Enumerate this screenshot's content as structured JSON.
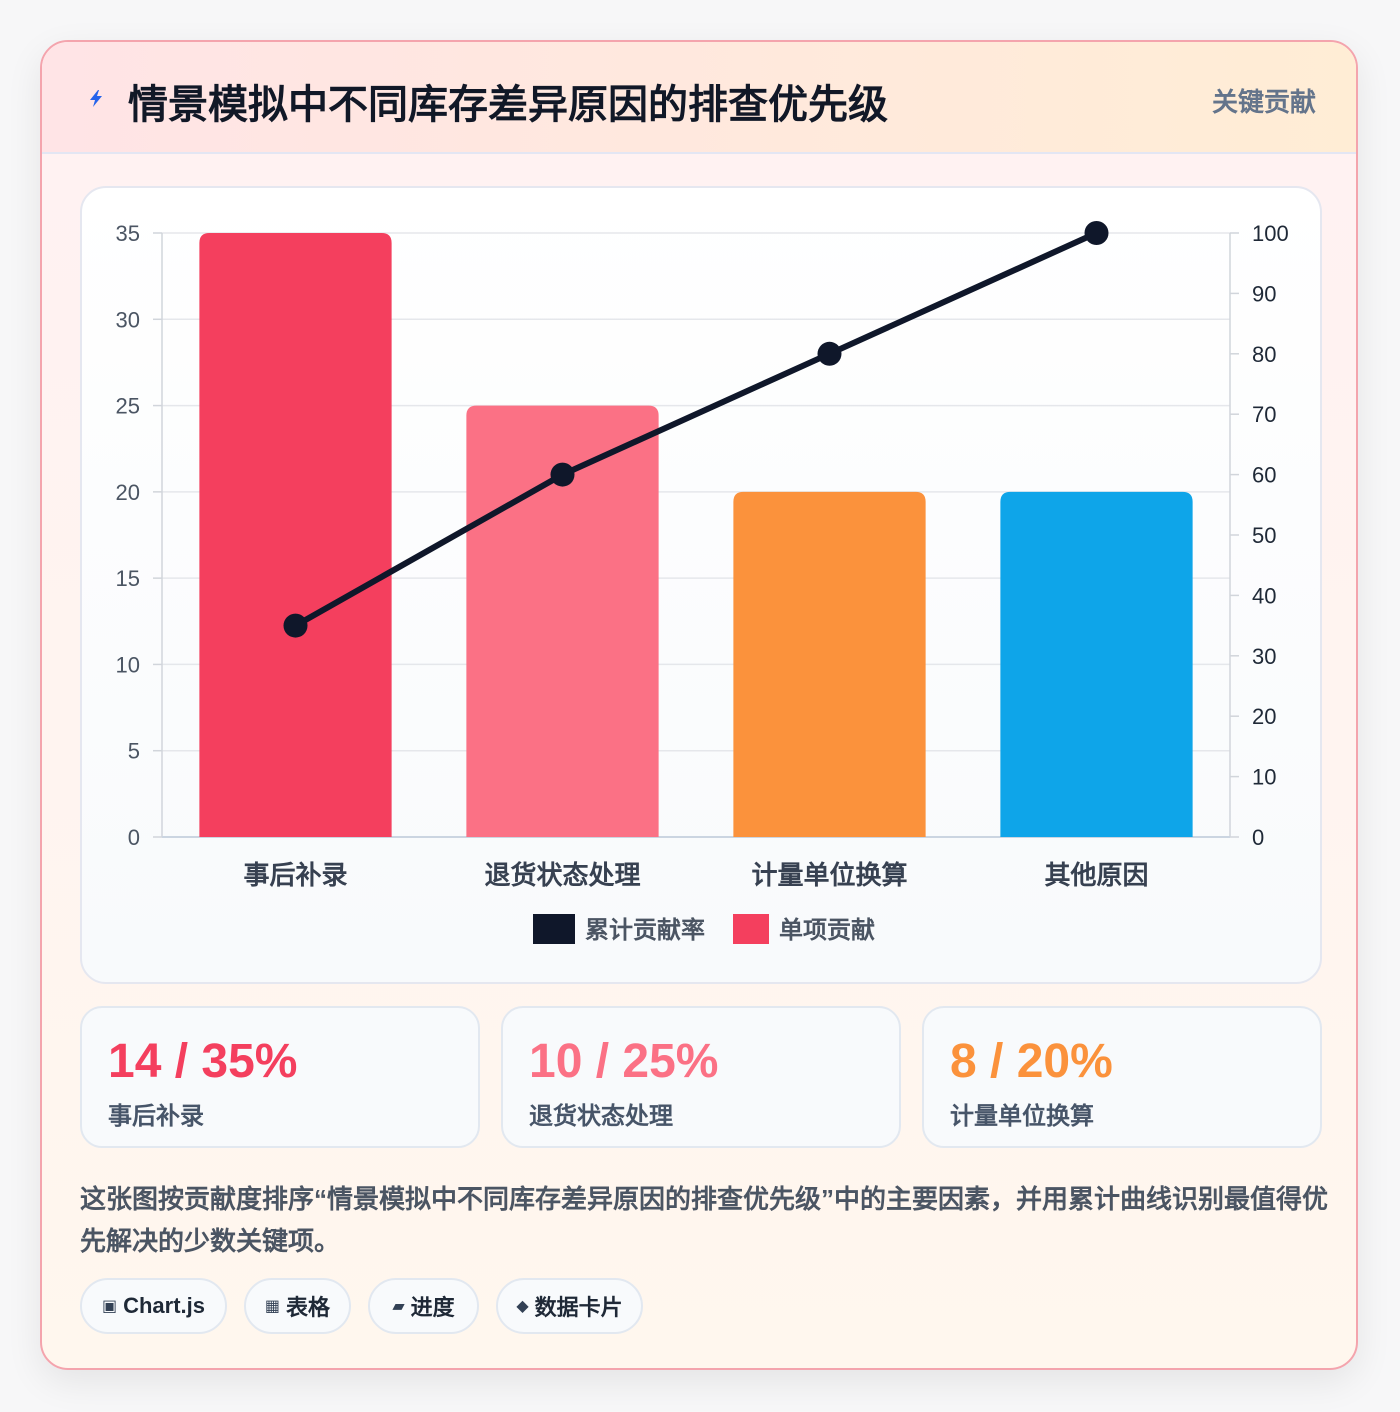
{
  "header": {
    "title": "情景模拟中不同库存差异原因的排查优先级",
    "badge": "关键贡献",
    "icon": "lightning-icon"
  },
  "chart_data": {
    "type": "bar",
    "categories": [
      "事后补录",
      "退货状态处理",
      "计量单位换算",
      "其他原因"
    ],
    "series": [
      {
        "name": "单项贡献",
        "type": "bar",
        "axis": "left",
        "values": [
          35,
          25,
          20,
          20
        ],
        "colors": [
          "#f43f5e",
          "#fb7185",
          "#fb923c",
          "#0ea5e9"
        ]
      },
      {
        "name": "累计贡献率",
        "type": "line",
        "axis": "right",
        "values": [
          35,
          60,
          80,
          100
        ],
        "color": "#0f172a"
      }
    ],
    "ylim_left": [
      0,
      35
    ],
    "yticks_left": [
      0,
      5,
      10,
      15,
      20,
      25,
      30,
      35
    ],
    "ylim_right": [
      0,
      100
    ],
    "yticks_right": [
      0,
      10,
      20,
      30,
      40,
      50,
      60,
      70,
      80,
      90,
      100
    ],
    "grid": true,
    "legend": [
      "累计贡献率",
      "单项贡献"
    ],
    "legend_position": "bottom"
  },
  "stats": [
    {
      "value": "14 / 35%",
      "label": "事后补录",
      "color": "#f43f5e"
    },
    {
      "value": "10 / 25%",
      "label": "退货状态处理",
      "color": "#fb7185"
    },
    {
      "value": "8 / 20%",
      "label": "计量单位换算",
      "color": "#fb923c"
    }
  ],
  "description": "这张图按贡献度排序“情景模拟中不同库存差异原因的排查优先级”中的主要因素，并用累计曲线识别最值得优先解决的少数关键项。",
  "tags": [
    {
      "icon": "▣",
      "label": "Chart.js"
    },
    {
      "icon": "▦",
      "label": "表格"
    },
    {
      "icon": "▰",
      "label": "进度"
    },
    {
      "icon": "◆",
      "label": "数据卡片"
    }
  ]
}
